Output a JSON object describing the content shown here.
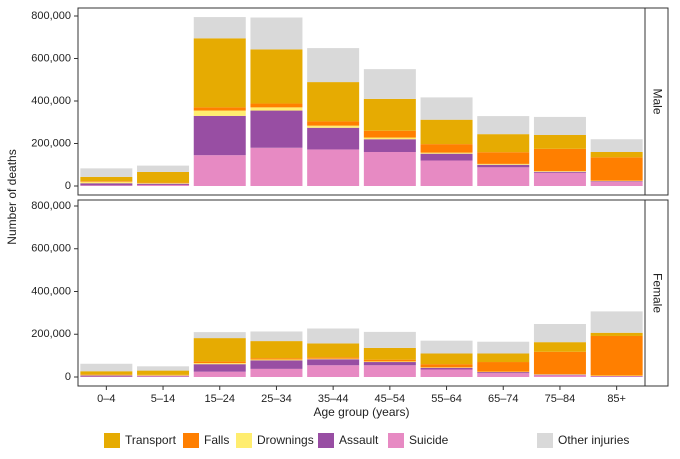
{
  "chart_data": {
    "type": "bar",
    "stacked": true,
    "facets": [
      "Male",
      "Female"
    ],
    "categories": [
      "0–4",
      "5–14",
      "15–24",
      "25–34",
      "35–44",
      "45–54",
      "55–64",
      "65–74",
      "75–84",
      "85+"
    ],
    "xlabel": "Age group (years)",
    "ylabel": "Number of deaths",
    "ylim": [
      0,
      800000
    ],
    "yticks": [
      0,
      200000,
      400000,
      600000,
      800000
    ],
    "ytick_labels": [
      "0",
      "200,000",
      "400,000",
      "600,000",
      "800,000"
    ],
    "legend_position": "bottom",
    "series": [
      {
        "name": "Suicide",
        "color": "#e78ac3",
        "male": [
          3000,
          5000,
          145000,
          180000,
          172000,
          160000,
          120000,
          88000,
          62000,
          20000
        ],
        "female": [
          2000,
          3000,
          25000,
          38000,
          55000,
          55000,
          35000,
          18000,
          8000,
          3000
        ]
      },
      {
        "name": "Assault",
        "color": "#984ea3",
        "male": [
          10000,
          6000,
          185000,
          175000,
          102000,
          60000,
          32000,
          12000,
          5000,
          3000
        ],
        "female": [
          5000,
          3000,
          35000,
          40000,
          28000,
          15000,
          8000,
          5000,
          3000,
          2000
        ]
      },
      {
        "name": "Drownings",
        "color": "#ffed6f",
        "male": [
          7000,
          3000,
          25000,
          15000,
          10000,
          8000,
          5000,
          4000,
          3000,
          2000
        ],
        "female": [
          3000,
          2000,
          5000,
          4000,
          3000,
          3000,
          2000,
          2000,
          2000,
          2000
        ]
      },
      {
        "name": "Falls",
        "color": "#ff7f00",
        "male": [
          3000,
          2000,
          15000,
          18000,
          20000,
          32000,
          40000,
          55000,
          105000,
          110000
        ],
        "female": [
          2000,
          2000,
          7000,
          6000,
          6000,
          8000,
          15000,
          45000,
          105000,
          185000
        ]
      },
      {
        "name": "Transport",
        "color": "#e6ab02",
        "male": [
          20000,
          50000,
          325000,
          255000,
          185000,
          150000,
          115000,
          85000,
          65000,
          25000
        ],
        "female": [
          15000,
          20000,
          110000,
          80000,
          65000,
          55000,
          50000,
          40000,
          45000,
          15000
        ]
      },
      {
        "name": "Other injuries",
        "color": "#d9d9d9",
        "male": [
          40000,
          30000,
          100000,
          150000,
          160000,
          140000,
          105000,
          85000,
          85000,
          60000
        ],
        "female": [
          35000,
          20000,
          28000,
          45000,
          70000,
          75000,
          60000,
          55000,
          85000,
          100000
        ]
      }
    ],
    "legend_order": [
      "Transport",
      "Falls",
      "Drownings",
      "Assault",
      "Suicide",
      "Other injuries"
    ]
  }
}
